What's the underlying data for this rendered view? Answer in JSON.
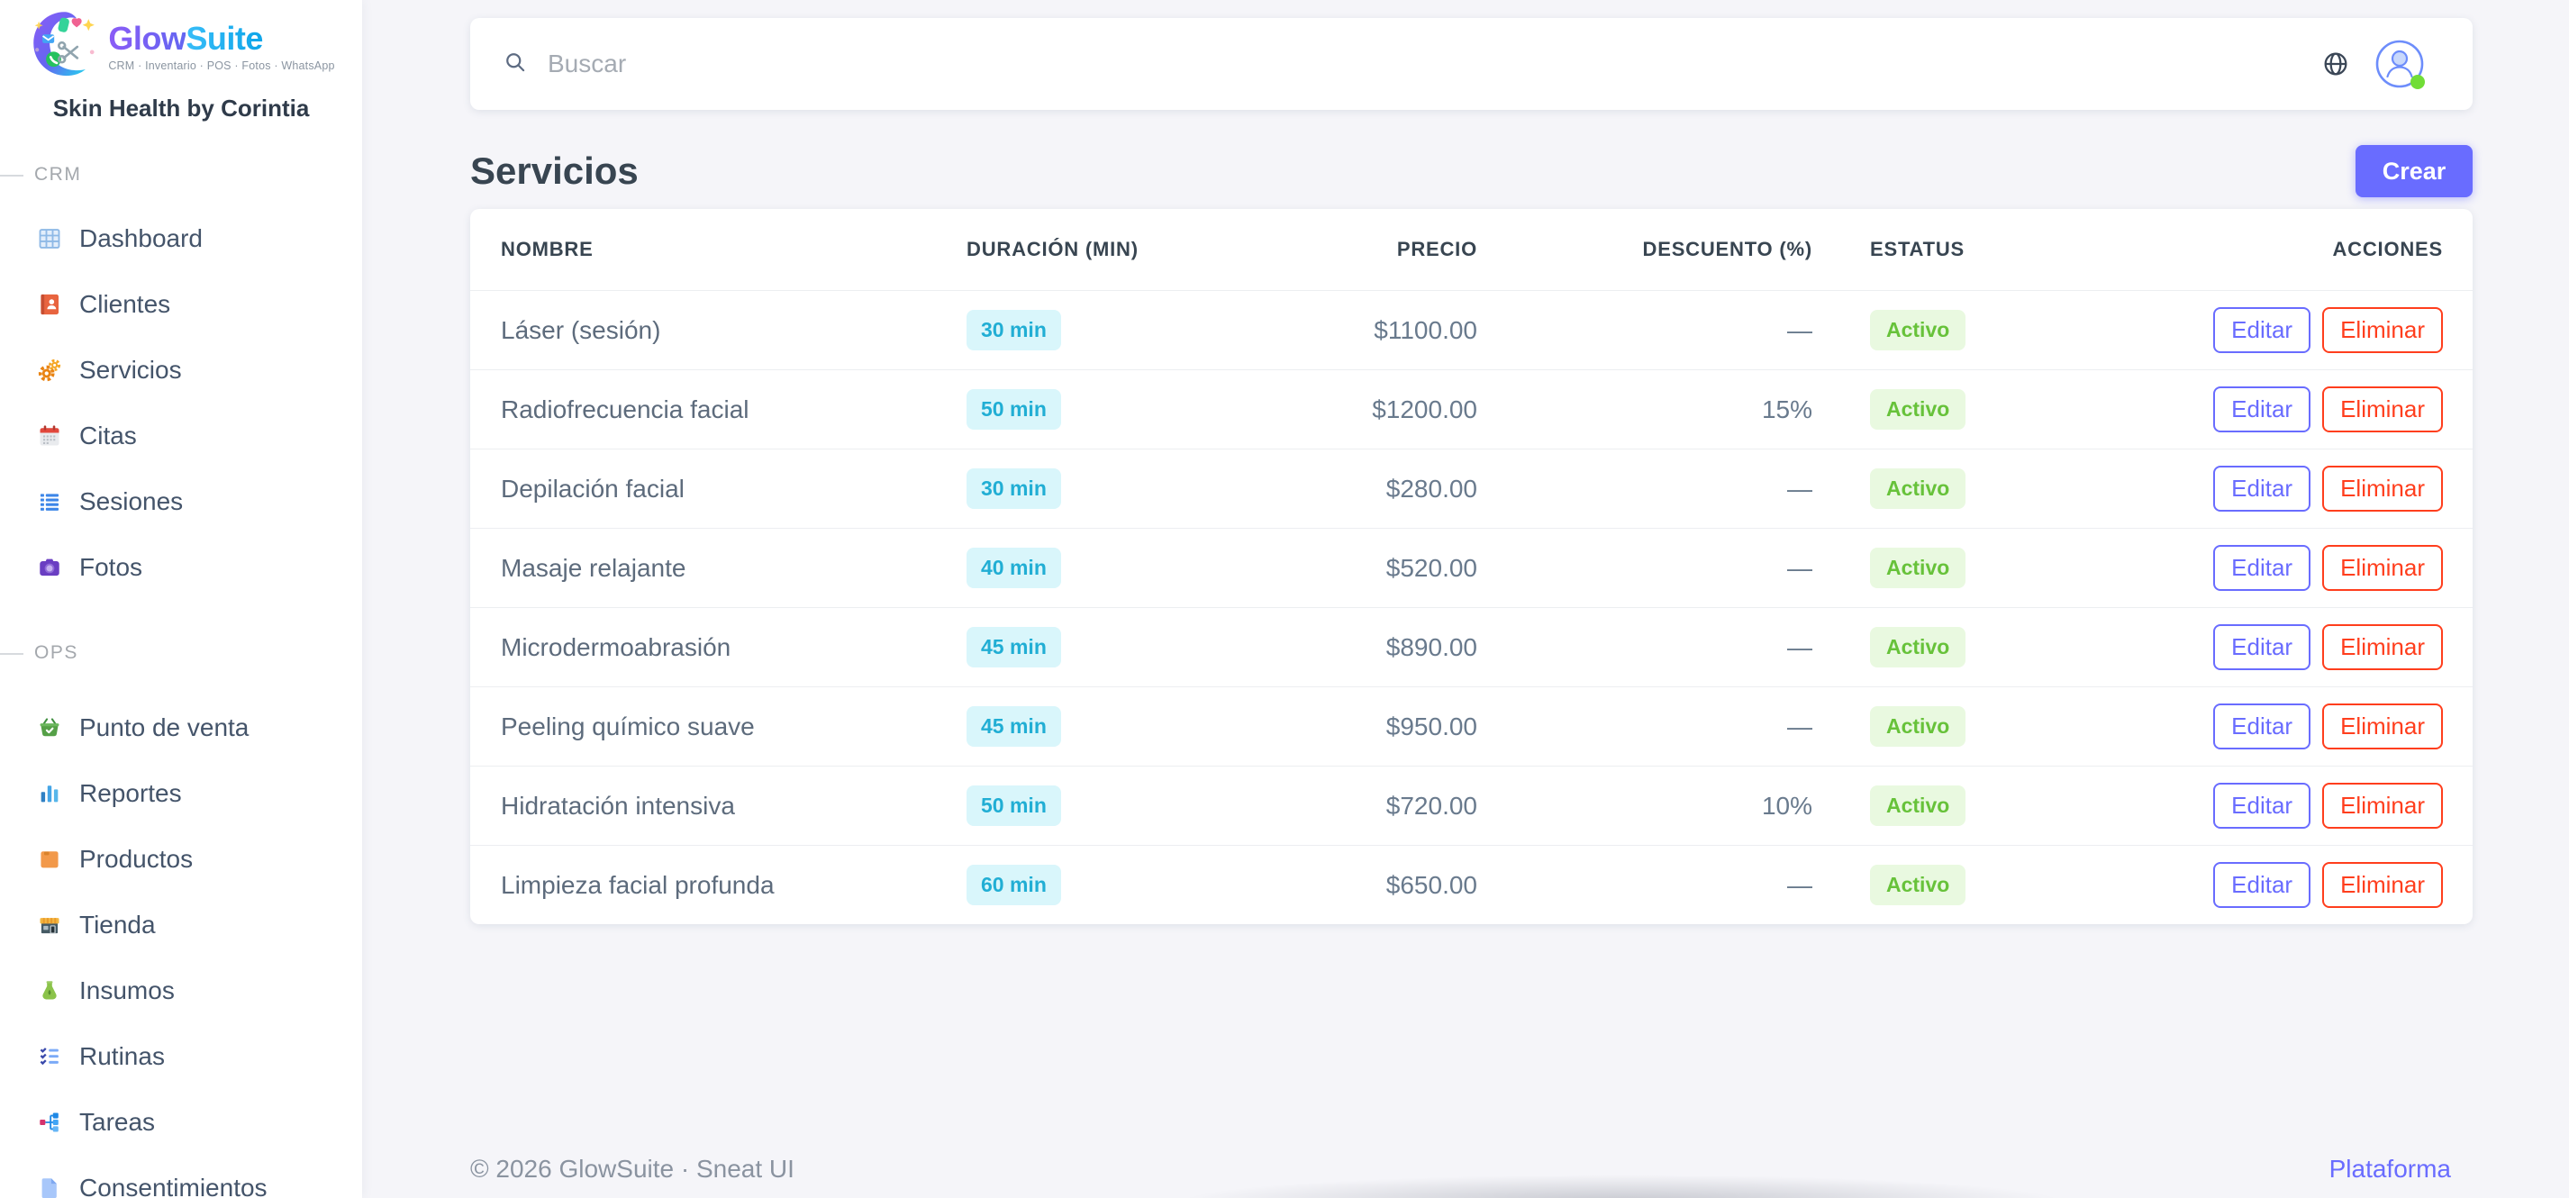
{
  "brand": {
    "name_part1": "Glow",
    "name_part2": "Suite",
    "tagline": "CRM · Inventario · POS · Fotos · WhatsApp",
    "workspace": "Skin Health by Corintia"
  },
  "sidebar": {
    "sections": [
      {
        "label": "CRM",
        "items": [
          {
            "label": "Dashboard",
            "icon": "dashboard-grid-icon"
          },
          {
            "label": "Clientes",
            "icon": "contacts-book-icon"
          },
          {
            "label": "Servicios",
            "icon": "gears-icon"
          },
          {
            "label": "Citas",
            "icon": "calendar-icon"
          },
          {
            "label": "Sesiones",
            "icon": "list-icon"
          },
          {
            "label": "Fotos",
            "icon": "camera-icon"
          }
        ]
      },
      {
        "label": "OPS",
        "items": [
          {
            "label": "Punto de venta",
            "icon": "basket-icon"
          },
          {
            "label": "Reportes",
            "icon": "bar-chart-icon"
          },
          {
            "label": "Productos",
            "icon": "package-icon"
          },
          {
            "label": "Tienda",
            "icon": "store-icon"
          },
          {
            "label": "Insumos",
            "icon": "flask-icon"
          },
          {
            "label": "Rutinas",
            "icon": "checklist-icon"
          },
          {
            "label": "Tareas",
            "icon": "org-chart-icon"
          },
          {
            "label": "Consentimientos",
            "icon": "document-icon"
          }
        ]
      }
    ]
  },
  "topbar": {
    "search_placeholder": "Buscar"
  },
  "page": {
    "title": "Servicios",
    "create_button": "Crear"
  },
  "services_table": {
    "columns": [
      "NOMBRE",
      "DURACIÓN (MIN)",
      "PRECIO",
      "DESCUENTO (%)",
      "ESTATUS",
      "ACCIONES"
    ],
    "action_labels": {
      "edit": "Editar",
      "delete": "Eliminar"
    },
    "rows": [
      {
        "nombre": "Láser (sesión)",
        "duracion": "30 min",
        "precio": "$1100.00",
        "descuento": "—",
        "estatus": "Activo"
      },
      {
        "nombre": "Radiofrecuencia facial",
        "duracion": "50 min",
        "precio": "$1200.00",
        "descuento": "15%",
        "estatus": "Activo"
      },
      {
        "nombre": "Depilación facial",
        "duracion": "30 min",
        "precio": "$280.00",
        "descuento": "—",
        "estatus": "Activo"
      },
      {
        "nombre": "Masaje relajante",
        "duracion": "40 min",
        "precio": "$520.00",
        "descuento": "—",
        "estatus": "Activo"
      },
      {
        "nombre": "Microdermoabrasión",
        "duracion": "45 min",
        "precio": "$890.00",
        "descuento": "—",
        "estatus": "Activo"
      },
      {
        "nombre": "Peeling químico suave",
        "duracion": "45 min",
        "precio": "$950.00",
        "descuento": "—",
        "estatus": "Activo"
      },
      {
        "nombre": "Hidratación intensiva",
        "duracion": "50 min",
        "precio": "$720.00",
        "descuento": "10%",
        "estatus": "Activo"
      },
      {
        "nombre": "Limpieza facial profunda",
        "duracion": "60 min",
        "precio": "$650.00",
        "descuento": "—",
        "estatus": "Activo"
      }
    ]
  },
  "footer": {
    "copyright": "© 2026 GlowSuite · Sneat UI",
    "link": "Plataforma"
  },
  "colors": {
    "primary": "#696cff",
    "info": "#03c3ec",
    "success": "#71dd37",
    "danger": "#ff3e1d"
  }
}
